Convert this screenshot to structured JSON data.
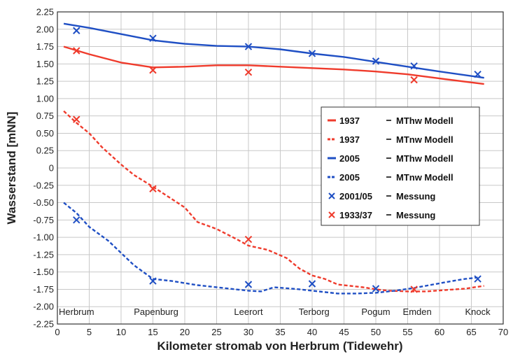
{
  "chart_data": {
    "type": "line",
    "xlabel": "Kilometer stromab von Herbrum (Tidewehr)",
    "ylabel": "Wasserstand [mNN]",
    "xlim": [
      0,
      70
    ],
    "ylim": [
      -2.25,
      2.25
    ],
    "xticks": [
      0,
      5,
      10,
      15,
      20,
      25,
      30,
      35,
      40,
      45,
      50,
      55,
      60,
      65,
      70
    ],
    "yticks": [
      "2.25",
      "2.00",
      "1.75",
      "1.50",
      "1.25",
      "1.00",
      "0.75",
      "0.50",
      "0.25",
      "0",
      "-0.25",
      "-0.50",
      "-0.75",
      "-1.00",
      "-1.25",
      "-1.50",
      "-1.75",
      "-2.00",
      "-2.25"
    ],
    "grid": true,
    "legend_position": "center-right",
    "places": [
      {
        "name": "Herbrum",
        "x": 3
      },
      {
        "name": "Papenburg",
        "x": 15.5
      },
      {
        "name": "Leerort",
        "x": 30
      },
      {
        "name": "Terborg",
        "x": 40.3
      },
      {
        "name": "Pogum",
        "x": 50
      },
      {
        "name": "Emden",
        "x": 56.5
      },
      {
        "name": "Knock",
        "x": 66
      }
    ],
    "series": [
      {
        "name": "MThw Modell",
        "legend_year": "1937",
        "color": "#ef3b2c",
        "style": "solid",
        "x": [
          1,
          5,
          10,
          15,
          20,
          25,
          30,
          35,
          40,
          45,
          50,
          55,
          60,
          67
        ],
        "y": [
          1.75,
          1.64,
          1.52,
          1.45,
          1.46,
          1.48,
          1.48,
          1.46,
          1.44,
          1.42,
          1.39,
          1.35,
          1.29,
          1.21
        ]
      },
      {
        "name": "MTnw Modell",
        "legend_year": "1937",
        "color": "#ef3b2c",
        "style": "dashed",
        "x": [
          1,
          3,
          5,
          7,
          10,
          12,
          15,
          18,
          20,
          22,
          25,
          28,
          30,
          33,
          36,
          38,
          40,
          42,
          44,
          46,
          48,
          50,
          52,
          55,
          58,
          61,
          64,
          67
        ],
        "y": [
          0.82,
          0.65,
          0.5,
          0.3,
          0.05,
          -0.1,
          -0.27,
          -0.45,
          -0.57,
          -0.78,
          -0.88,
          -1.02,
          -1.12,
          -1.18,
          -1.3,
          -1.45,
          -1.55,
          -1.6,
          -1.68,
          -1.7,
          -1.72,
          -1.75,
          -1.77,
          -1.78,
          -1.78,
          -1.76,
          -1.74,
          -1.7
        ]
      },
      {
        "name": "MThw Modell",
        "legend_year": "2005",
        "color": "#1f4fc4",
        "style": "solid",
        "x": [
          1,
          5,
          10,
          15,
          20,
          25,
          30,
          35,
          40,
          45,
          50,
          55,
          60,
          67
        ],
        "y": [
          2.08,
          2.02,
          1.93,
          1.84,
          1.79,
          1.76,
          1.75,
          1.71,
          1.65,
          1.6,
          1.53,
          1.46,
          1.39,
          1.3
        ]
      },
      {
        "name": "MTnw Modell",
        "legend_year": "2005",
        "color": "#1f4fc4",
        "style": "dashed",
        "x": [
          1,
          3,
          5,
          8,
          12,
          15,
          18,
          22,
          26,
          30,
          32,
          34,
          38,
          41,
          44,
          47,
          50,
          53,
          56,
          59,
          62,
          64,
          66
        ],
        "y": [
          -0.5,
          -0.65,
          -0.85,
          -1.05,
          -1.4,
          -1.6,
          -1.63,
          -1.69,
          -1.73,
          -1.77,
          -1.78,
          -1.72,
          -1.75,
          -1.78,
          -1.81,
          -1.81,
          -1.8,
          -1.77,
          -1.73,
          -1.68,
          -1.63,
          -1.6,
          -1.58
        ]
      }
    ],
    "markers": [
      {
        "name": "Messung",
        "legend_year": "2001/05",
        "color": "#1f4fc4",
        "points": [
          [
            3,
            1.98
          ],
          [
            15,
            1.87
          ],
          [
            30,
            1.75
          ],
          [
            40,
            1.65
          ],
          [
            50,
            1.54
          ],
          [
            56,
            1.47
          ],
          [
            66,
            1.35
          ],
          [
            3,
            -0.75
          ],
          [
            15,
            -1.63
          ],
          [
            30,
            -1.68
          ],
          [
            40,
            -1.67
          ],
          [
            50,
            -1.74
          ],
          [
            66,
            -1.6
          ]
        ]
      },
      {
        "name": "Messung",
        "legend_year": "1933/37",
        "color": "#ef3b2c",
        "points": [
          [
            3,
            1.69
          ],
          [
            15,
            1.41
          ],
          [
            30,
            1.38
          ],
          [
            56,
            1.27
          ],
          [
            3,
            0.7
          ],
          [
            15,
            -0.3
          ],
          [
            30,
            -1.03
          ],
          [
            56,
            -1.75
          ]
        ]
      }
    ]
  }
}
